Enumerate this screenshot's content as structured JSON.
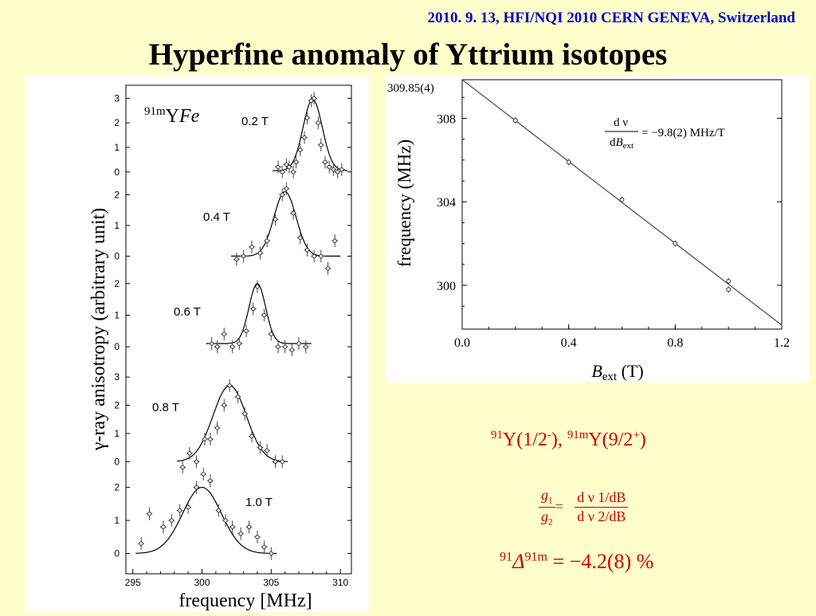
{
  "header": {
    "conference": "2010. 9. 13, HFI/NQI 2010 CERN GENEVA, Switzerland",
    "title": "Hyperfine anomaly of Yttrium isotopes"
  },
  "chart_data": [
    {
      "type": "scatter",
      "title": "",
      "sample_label": {
        "sup": "91m",
        "main": "Y",
        "italic": "Fe"
      },
      "xlabel": "frequency [MHz]",
      "ylabel": "γ-ray anisotropy (arbitrary unit)",
      "xlim": [
        294.5,
        310.8
      ],
      "xticks": [
        "295",
        "300",
        "305",
        "310"
      ],
      "panels": [
        {
          "label": "0.2 T",
          "ylim": [
            -0.3,
            3.4
          ],
          "yticks": [
            "0",
            "1",
            "2",
            "3"
          ],
          "fit": {
            "center": 308.0,
            "width": 0.7,
            "amplitude": 2.9,
            "baseline": 0.05
          },
          "points": [
            {
              "x": 305.5,
              "y": 0.2
            },
            {
              "x": 305.8,
              "y": 0.0
            },
            {
              "x": 306.1,
              "y": 0.3
            },
            {
              "x": 306.3,
              "y": 0.2
            },
            {
              "x": 306.6,
              "y": 0.0
            },
            {
              "x": 306.8,
              "y": 0.4
            },
            {
              "x": 307.1,
              "y": 0.9
            },
            {
              "x": 307.4,
              "y": 1.4
            },
            {
              "x": 307.6,
              "y": 2.2
            },
            {
              "x": 307.9,
              "y": 2.9
            },
            {
              "x": 308.1,
              "y": 3.0
            },
            {
              "x": 308.4,
              "y": 2.0
            },
            {
              "x": 308.6,
              "y": 1.1
            },
            {
              "x": 308.9,
              "y": 0.4
            },
            {
              "x": 309.2,
              "y": 0.2
            },
            {
              "x": 309.5,
              "y": 0.1
            },
            {
              "x": 309.8,
              "y": 0.0
            },
            {
              "x": 310.1,
              "y": 0.1
            }
          ]
        },
        {
          "label": "0.4 T",
          "ylim": [
            -0.3,
            2.4
          ],
          "yticks": [
            "0",
            "1",
            "2"
          ],
          "fit": {
            "center": 306.0,
            "width": 0.8,
            "amplitude": 2.1,
            "baseline": 0.0
          },
          "points": [
            {
              "x": 302.5,
              "y": -0.1
            },
            {
              "x": 303.0,
              "y": 0.0
            },
            {
              "x": 303.6,
              "y": 0.3
            },
            {
              "x": 304.2,
              "y": 0.1
            },
            {
              "x": 304.7,
              "y": 0.5
            },
            {
              "x": 305.3,
              "y": 1.2
            },
            {
              "x": 305.8,
              "y": 2.0
            },
            {
              "x": 306.1,
              "y": 2.2
            },
            {
              "x": 306.6,
              "y": 1.4
            },
            {
              "x": 307.1,
              "y": 0.6
            },
            {
              "x": 307.6,
              "y": 0.2
            },
            {
              "x": 308.1,
              "y": 0.0
            },
            {
              "x": 308.6,
              "y": 0.0
            },
            {
              "x": 309.1,
              "y": -0.4
            },
            {
              "x": 309.6,
              "y": 0.5
            }
          ]
        },
        {
          "label": "0.6 T",
          "ylim": [
            -0.3,
            2.4
          ],
          "yticks": [
            "0",
            "1",
            "2"
          ],
          "fit": {
            "center": 304.0,
            "width": 0.6,
            "amplitude": 1.9,
            "baseline": 0.1
          },
          "points": [
            {
              "x": 300.7,
              "y": 0.1
            },
            {
              "x": 301.1,
              "y": 0.0
            },
            {
              "x": 301.6,
              "y": 0.4
            },
            {
              "x": 302.2,
              "y": 0.0
            },
            {
              "x": 302.7,
              "y": 0.1
            },
            {
              "x": 303.2,
              "y": 0.5
            },
            {
              "x": 303.7,
              "y": 1.2
            },
            {
              "x": 304.0,
              "y": 1.9
            },
            {
              "x": 304.5,
              "y": 1.0
            },
            {
              "x": 305.0,
              "y": 0.4
            },
            {
              "x": 305.5,
              "y": 0.0
            },
            {
              "x": 306.0,
              "y": 0.0
            },
            {
              "x": 306.5,
              "y": -0.1
            },
            {
              "x": 307.0,
              "y": 0.1
            },
            {
              "x": 307.5,
              "y": 0.0
            }
          ]
        },
        {
          "label": "0.8 T",
          "ylim": [
            -0.3,
            3.4
          ],
          "yticks": [
            "0",
            "1",
            "2",
            "3"
          ],
          "fit": {
            "center": 302.0,
            "width": 1.2,
            "amplitude": 2.7,
            "baseline": 0.0
          },
          "points": [
            {
              "x": 298.6,
              "y": -0.2
            },
            {
              "x": 299.1,
              "y": 0.3
            },
            {
              "x": 299.6,
              "y": 0.0
            },
            {
              "x": 300.2,
              "y": 0.8
            },
            {
              "x": 300.6,
              "y": 0.8
            },
            {
              "x": 301.1,
              "y": 1.2
            },
            {
              "x": 301.6,
              "y": 2.0
            },
            {
              "x": 302.0,
              "y": 2.7
            },
            {
              "x": 302.6,
              "y": 2.3
            },
            {
              "x": 303.1,
              "y": 1.7
            },
            {
              "x": 303.6,
              "y": 0.9
            },
            {
              "x": 304.2,
              "y": 0.5
            },
            {
              "x": 304.7,
              "y": 0.4
            },
            {
              "x": 305.3,
              "y": 0.0
            },
            {
              "x": 305.8,
              "y": 0.0
            }
          ]
        },
        {
          "label": "1.0 T",
          "ylim": [
            -0.3,
            2.4
          ],
          "yticks": [
            "0",
            "1",
            "2"
          ],
          "fit": {
            "center": 300.0,
            "width": 1.4,
            "amplitude": 2.0,
            "baseline": 0.0
          },
          "points": [
            {
              "x": 295.6,
              "y": 0.3
            },
            {
              "x": 296.2,
              "y": 1.2
            },
            {
              "x": 297.2,
              "y": 0.8
            },
            {
              "x": 297.8,
              "y": 1.0
            },
            {
              "x": 298.4,
              "y": 1.3
            },
            {
              "x": 299.0,
              "y": 1.4
            },
            {
              "x": 299.6,
              "y": 2.0
            },
            {
              "x": 300.1,
              "y": 2.4
            },
            {
              "x": 300.6,
              "y": 2.2
            },
            {
              "x": 301.2,
              "y": 1.3
            },
            {
              "x": 301.7,
              "y": 1.0
            },
            {
              "x": 302.2,
              "y": 0.8
            },
            {
              "x": 302.8,
              "y": 0.6
            },
            {
              "x": 303.4,
              "y": 0.8
            },
            {
              "x": 304.0,
              "y": 0.5
            },
            {
              "x": 304.5,
              "y": 0.2
            },
            {
              "x": 305.0,
              "y": 0.0
            }
          ]
        }
      ]
    },
    {
      "type": "scatter",
      "title": "",
      "xlabel_main": "B",
      "xlabel_sub": "ext",
      "xlabel_unit": " (T)",
      "ylabel": "frequency (MHz)",
      "xlim": [
        0.0,
        1.2
      ],
      "ylim": [
        297.9,
        309.85
      ],
      "xticks": [
        0.0,
        0.4,
        0.8,
        1.2
      ],
      "xtick_labels": [
        "0.0",
        "0.4",
        "0.8",
        "1.2"
      ],
      "yticks": [
        300,
        304,
        308
      ],
      "ytick_labels": [
        "300",
        "304",
        "308"
      ],
      "intercept_label": "309.85(4)",
      "fit": {
        "intercept": 309.85,
        "slope": -9.8
      },
      "points": [
        {
          "x": 0.2,
          "y": 307.9
        },
        {
          "x": 0.4,
          "y": 305.9
        },
        {
          "x": 0.6,
          "y": 304.1
        },
        {
          "x": 0.8,
          "y": 302.0
        },
        {
          "x": 1.0,
          "y": 300.2
        },
        {
          "x": 1.0,
          "y": 299.8
        }
      ],
      "annotation": {
        "num": "d ν",
        "den_main": "dB",
        "den_sub": "ext",
        "value": "= −9.8(2) MHz/T"
      }
    }
  ],
  "results": {
    "isotopes": {
      "a_sup": "91",
      "a_main": "Y(1/2",
      "a_spin_sup": "-",
      "a_close": "), ",
      "b_sup": "91m",
      "b_main": "Y(9/2",
      "b_spin_sup": "+",
      "b_close": ")"
    },
    "ratio": {
      "g1": "g",
      "g1_sub": "1",
      "g2": "g",
      "g2_sub": "2",
      "eq": "=",
      "num": "d ν 1/dB",
      "den": "d ν 2/dB"
    },
    "anomaly": {
      "pre_sup": "91",
      "delta": "Δ",
      "post_sup": "91m",
      "value": " = −4.2(8) %"
    }
  },
  "colors": {
    "background": "#ffffcc",
    "header_blue": "#0000cc",
    "result_red": "#cc0000",
    "fit_gray": "#555555"
  }
}
